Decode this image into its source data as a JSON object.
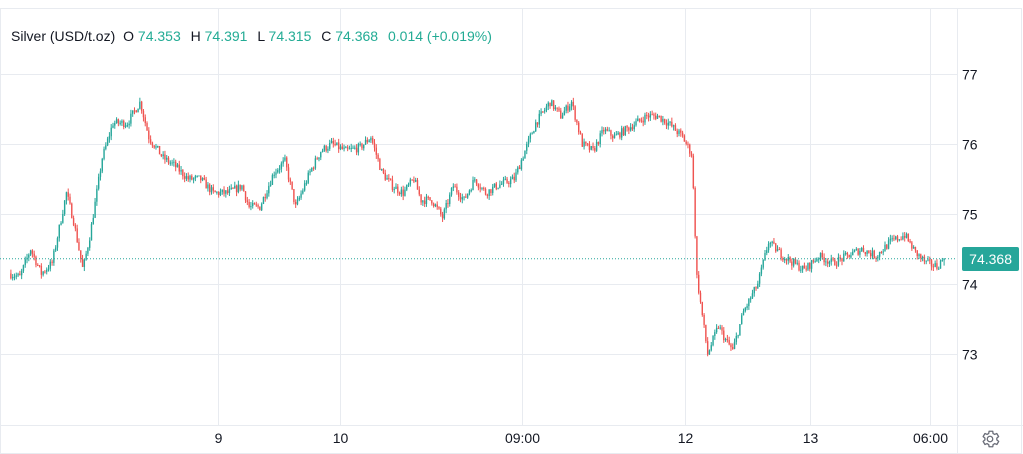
{
  "legend": {
    "symbol": "Silver (USD/t.oz)",
    "o_label": "O",
    "o_value": "74.353",
    "h_label": "H",
    "h_value": "74.391",
    "l_label": "L",
    "l_value": "74.315",
    "c_label": "C",
    "c_value": "74.368",
    "change": "0.014 (+0.019%)"
  },
  "price_tag": "74.368",
  "colors": {
    "up": "#26a69a",
    "down": "#ef5350",
    "grid": "#e8ebf0",
    "text": "#131722",
    "tag": "#26a69a"
  },
  "settings_icon": "gear-icon",
  "chart_data": {
    "type": "candlestick",
    "title": "Silver (USD/t.oz)",
    "xlabel": "",
    "ylabel": "",
    "ylim": [
      72.0,
      78.0
    ],
    "y_ticks": [
      73,
      74,
      75,
      76,
      77
    ],
    "x_ticks": [
      "9",
      "10",
      "09:00",
      "12",
      "13",
      "06:00"
    ],
    "grid": true,
    "last_price": 74.368,
    "series": [
      {
        "name": "Silver (USD/t.oz)",
        "anchors": [
          [
            0,
            74.15
          ],
          [
            1.5,
            74.1
          ],
          [
            3,
            74.5
          ],
          [
            4.5,
            74.15
          ],
          [
            6,
            74.3
          ],
          [
            8,
            75.3
          ],
          [
            9,
            74.9
          ],
          [
            10.3,
            74.2
          ],
          [
            11.3,
            74.7
          ],
          [
            13,
            75.8
          ],
          [
            14.5,
            76.3
          ],
          [
            16.5,
            76.3
          ],
          [
            18.3,
            76.6
          ],
          [
            19.5,
            76.1
          ],
          [
            21.5,
            75.8
          ],
          [
            23,
            75.7
          ],
          [
            25,
            75.5
          ],
          [
            26.7,
            75.5
          ],
          [
            28.5,
            75.3
          ],
          [
            30.5,
            75.3
          ],
          [
            32.5,
            75.4
          ],
          [
            33.5,
            75.1
          ],
          [
            35,
            75.1
          ],
          [
            37,
            75.6
          ],
          [
            38.5,
            75.75
          ],
          [
            40,
            75.1
          ],
          [
            42,
            75.6
          ],
          [
            43.5,
            75.9
          ],
          [
            45,
            76.0
          ],
          [
            47,
            75.9
          ],
          [
            49,
            75.95
          ],
          [
            50.5,
            76.1
          ],
          [
            52,
            75.6
          ],
          [
            53.5,
            75.4
          ],
          [
            55,
            75.3
          ],
          [
            56.5,
            75.5
          ],
          [
            57.5,
            75.2
          ],
          [
            59,
            75.2
          ],
          [
            60.5,
            74.95
          ],
          [
            62,
            75.4
          ],
          [
            63.5,
            75.2
          ],
          [
            65,
            75.5
          ],
          [
            66.5,
            75.3
          ],
          [
            68,
            75.4
          ],
          [
            70.5,
            75.5
          ],
          [
            72,
            75.9
          ],
          [
            73.5,
            76.3
          ],
          [
            75.5,
            76.6
          ],
          [
            77,
            76.4
          ],
          [
            78.5,
            76.6
          ],
          [
            80,
            76.0
          ],
          [
            81.5,
            75.9
          ],
          [
            83,
            76.2
          ],
          [
            84.5,
            76.1
          ],
          [
            86,
            76.2
          ],
          [
            87.5,
            76.3
          ],
          [
            89,
            76.4
          ],
          [
            90.5,
            76.4
          ],
          [
            92,
            76.3
          ],
          [
            94,
            76.1
          ],
          [
            95.3,
            75.85
          ],
          [
            96,
            74.1
          ],
          [
            97.5,
            73.0
          ],
          [
            99,
            73.4
          ],
          [
            100,
            73.2
          ],
          [
            101,
            73.05
          ],
          [
            102.5,
            73.6
          ],
          [
            104.5,
            74.0
          ],
          [
            106,
            74.6
          ],
          [
            108,
            74.4
          ],
          [
            109.5,
            74.3
          ],
          [
            111,
            74.2
          ],
          [
            113,
            74.4
          ],
          [
            115,
            74.3
          ],
          [
            117,
            74.4
          ],
          [
            119,
            74.5
          ],
          [
            121,
            74.4
          ],
          [
            123,
            74.6
          ],
          [
            125,
            74.7
          ],
          [
            126.5,
            74.45
          ],
          [
            128,
            74.3
          ],
          [
            129.5,
            74.25
          ],
          [
            130.5,
            74.368
          ]
        ]
      }
    ]
  }
}
